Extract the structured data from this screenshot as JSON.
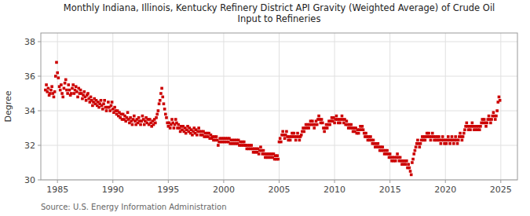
{
  "chart_data": {
    "type": "scatter",
    "title": "Monthly Indiana, Illinois, Kentucky Refinery District API Gravity (Weighted Average) of Crude Oil\nInput to Refineries",
    "ylabel": "Degree",
    "source": "Source: U.S. Energy Information Administration",
    "color": "#cc0000",
    "marker": "square",
    "grid": true,
    "xlim": [
      1983.5,
      2026.5
    ],
    "ylim": [
      30,
      38.5
    ],
    "xticks": [
      1985,
      1990,
      1995,
      2000,
      2005,
      2010,
      2015,
      2020,
      2025
    ],
    "yticks": [
      30,
      32,
      34,
      36,
      38
    ],
    "x": [
      1983.917,
      1984.0,
      1984.083,
      1984.167,
      1984.25,
      1984.333,
      1984.417,
      1984.5,
      1984.583,
      1984.667,
      1984.75,
      1984.833,
      1984.917,
      1985.0,
      1985.083,
      1985.167,
      1985.25,
      1985.333,
      1985.417,
      1985.5,
      1985.583,
      1985.667,
      1985.75,
      1985.833,
      1985.917,
      1986.0,
      1986.083,
      1986.167,
      1986.25,
      1986.333,
      1986.417,
      1986.5,
      1986.583,
      1986.667,
      1986.75,
      1986.833,
      1986.917,
      1987.0,
      1987.083,
      1987.167,
      1987.25,
      1987.333,
      1987.417,
      1987.5,
      1987.583,
      1987.667,
      1987.75,
      1987.833,
      1987.917,
      1988.0,
      1988.083,
      1988.167,
      1988.25,
      1988.333,
      1988.417,
      1988.5,
      1988.583,
      1988.667,
      1988.75,
      1988.833,
      1988.917,
      1989.0,
      1989.083,
      1989.167,
      1989.25,
      1989.333,
      1989.417,
      1989.5,
      1989.583,
      1989.667,
      1989.75,
      1989.833,
      1989.917,
      1990.0,
      1990.083,
      1990.167,
      1990.25,
      1990.333,
      1990.417,
      1990.5,
      1990.583,
      1990.667,
      1990.75,
      1990.833,
      1990.917,
      1991.0,
      1991.083,
      1991.167,
      1991.25,
      1991.333,
      1991.417,
      1991.5,
      1991.583,
      1991.667,
      1991.75,
      1991.833,
      1991.917,
      1992.0,
      1992.083,
      1992.167,
      1992.25,
      1992.333,
      1992.417,
      1992.5,
      1992.583,
      1992.667,
      1992.75,
      1992.833,
      1992.917,
      1993.0,
      1993.083,
      1993.167,
      1993.25,
      1993.333,
      1993.417,
      1993.5,
      1993.583,
      1993.667,
      1993.75,
      1993.833,
      1993.917,
      1994.0,
      1994.083,
      1994.167,
      1994.25,
      1994.333,
      1994.417,
      1994.5,
      1994.583,
      1994.667,
      1994.75,
      1994.833,
      1994.917,
      1995.0,
      1995.083,
      1995.167,
      1995.25,
      1995.333,
      1995.417,
      1995.5,
      1995.583,
      1995.667,
      1995.75,
      1995.833,
      1995.917,
      1996.0,
      1996.083,
      1996.167,
      1996.25,
      1996.333,
      1996.417,
      1996.5,
      1996.583,
      1996.667,
      1996.75,
      1996.833,
      1996.917,
      1997.0,
      1997.083,
      1997.167,
      1997.25,
      1997.333,
      1997.417,
      1997.5,
      1997.583,
      1997.667,
      1997.75,
      1997.833,
      1997.917,
      1998.0,
      1998.083,
      1998.167,
      1998.25,
      1998.333,
      1998.417,
      1998.5,
      1998.583,
      1998.667,
      1998.75,
      1998.833,
      1998.917,
      1999.0,
      1999.083,
      1999.167,
      1999.25,
      1999.333,
      1999.417,
      1999.5,
      1999.583,
      1999.667,
      1999.75,
      1999.833,
      1999.917,
      2000.0,
      2000.083,
      2000.167,
      2000.25,
      2000.333,
      2000.417,
      2000.5,
      2000.583,
      2000.667,
      2000.75,
      2000.833,
      2000.917,
      2001.0,
      2001.083,
      2001.167,
      2001.25,
      2001.333,
      2001.417,
      2001.5,
      2001.583,
      2001.667,
      2001.75,
      2001.833,
      2001.917,
      2002.0,
      2002.083,
      2002.167,
      2002.25,
      2002.333,
      2002.417,
      2002.5,
      2002.583,
      2002.667,
      2002.75,
      2002.833,
      2002.917,
      2003.0,
      2003.083,
      2003.167,
      2003.25,
      2003.333,
      2003.417,
      2003.5,
      2003.583,
      2003.667,
      2003.75,
      2003.833,
      2003.917,
      2004.0,
      2004.083,
      2004.167,
      2004.25,
      2004.333,
      2004.417,
      2004.5,
      2004.583,
      2004.667,
      2004.75,
      2004.833,
      2004.917,
      2005.0,
      2005.083,
      2005.167,
      2005.25,
      2005.333,
      2005.417,
      2005.5,
      2005.583,
      2005.667,
      2005.75,
      2005.833,
      2005.917,
      2006.0,
      2006.083,
      2006.167,
      2006.25,
      2006.333,
      2006.417,
      2006.5,
      2006.583,
      2006.667,
      2006.75,
      2006.833,
      2006.917,
      2007.0,
      2007.083,
      2007.167,
      2007.25,
      2007.333,
      2007.417,
      2007.5,
      2007.583,
      2007.667,
      2007.75,
      2007.833,
      2007.917,
      2008.0,
      2008.083,
      2008.167,
      2008.25,
      2008.333,
      2008.417,
      2008.5,
      2008.583,
      2008.667,
      2008.75,
      2008.833,
      2008.917,
      2009.0,
      2009.083,
      2009.167,
      2009.25,
      2009.333,
      2009.417,
      2009.5,
      2009.583,
      2009.667,
      2009.75,
      2009.833,
      2009.917,
      2010.0,
      2010.083,
      2010.167,
      2010.25,
      2010.333,
      2010.417,
      2010.5,
      2010.583,
      2010.667,
      2010.75,
      2010.833,
      2010.917,
      2011.0,
      2011.083,
      2011.167,
      2011.25,
      2011.333,
      2011.417,
      2011.5,
      2011.583,
      2011.667,
      2011.75,
      2011.833,
      2011.917,
      2012.0,
      2012.083,
      2012.167,
      2012.25,
      2012.333,
      2012.417,
      2012.5,
      2012.583,
      2012.667,
      2012.75,
      2012.833,
      2012.917,
      2013.0,
      2013.083,
      2013.167,
      2013.25,
      2013.333,
      2013.417,
      2013.5,
      2013.583,
      2013.667,
      2013.75,
      2013.833,
      2013.917,
      2014.0,
      2014.083,
      2014.167,
      2014.25,
      2014.333,
      2014.417,
      2014.5,
      2014.583,
      2014.667,
      2014.75,
      2014.833,
      2014.917,
      2015.0,
      2015.083,
      2015.167,
      2015.25,
      2015.333,
      2015.417,
      2015.5,
      2015.583,
      2015.667,
      2015.75,
      2015.833,
      2015.917,
      2016.0,
      2016.083,
      2016.167,
      2016.25,
      2016.333,
      2016.417,
      2016.5,
      2016.583,
      2016.667,
      2016.75,
      2016.833,
      2016.917,
      2017.0,
      2017.083,
      2017.167,
      2017.25,
      2017.333,
      2017.417,
      2017.5,
      2017.583,
      2017.667,
      2017.75,
      2017.833,
      2017.917,
      2018.0,
      2018.083,
      2018.167,
      2018.25,
      2018.333,
      2018.417,
      2018.5,
      2018.583,
      2018.667,
      2018.75,
      2018.833,
      2018.917,
      2019.0,
      2019.083,
      2019.167,
      2019.25,
      2019.333,
      2019.417,
      2019.5,
      2019.583,
      2019.667,
      2019.75,
      2019.833,
      2019.917,
      2020.0,
      2020.083,
      2020.167,
      2020.25,
      2020.333,
      2020.417,
      2020.5,
      2020.583,
      2020.667,
      2020.75,
      2020.833,
      2020.917,
      2021.0,
      2021.083,
      2021.167,
      2021.25,
      2021.333,
      2021.417,
      2021.5,
      2021.583,
      2021.667,
      2021.75,
      2021.833,
      2021.917,
      2022.0,
      2022.083,
      2022.167,
      2022.25,
      2022.333,
      2022.417,
      2022.5,
      2022.583,
      2022.667,
      2022.75,
      2022.833,
      2022.917,
      2023.0,
      2023.083,
      2023.167,
      2023.25,
      2023.333,
      2023.417,
      2023.5,
      2023.583,
      2023.667,
      2023.75,
      2023.833,
      2023.917,
      2024.0,
      2024.083,
      2024.167,
      2024.25,
      2024.333,
      2024.417,
      2024.5,
      2024.583,
      2024.667,
      2024.75,
      2024.833,
      2024.917
    ],
    "values": [
      35.2,
      35.5,
      35.1,
      35.3,
      34.9,
      35.0,
      35.2,
      35.4,
      35.0,
      34.8,
      35.1,
      36.0,
      36.8,
      36.2,
      35.9,
      35.4,
      35.2,
      35.5,
      35.0,
      34.8,
      35.3,
      35.6,
      35.8,
      35.2,
      35.0,
      35.5,
      35.2,
      34.9,
      35.0,
      35.3,
      35.5,
      35.0,
      35.2,
      35.4,
      35.1,
      34.8,
      35.3,
      35.0,
      35.2,
      35.0,
      34.7,
      34.9,
      35.1,
      34.8,
      34.6,
      34.9,
      35.0,
      34.7,
      34.5,
      34.8,
      34.6,
      34.3,
      34.5,
      34.7,
      34.4,
      34.6,
      34.3,
      34.5,
      34.2,
      34.4,
      34.6,
      34.3,
      34.1,
      34.4,
      34.6,
      34.2,
      34.0,
      34.2,
      34.5,
      34.2,
      34.0,
      34.3,
      34.5,
      34.1,
      33.9,
      34.2,
      34.0,
      33.8,
      34.0,
      33.7,
      33.9,
      33.6,
      33.8,
      33.5,
      33.8,
      33.5,
      33.7,
      33.4,
      33.6,
      33.9,
      33.5,
      33.3,
      33.6,
      33.4,
      33.2,
      33.5,
      33.7,
      33.4,
      33.2,
      33.5,
      33.3,
      33.6,
      33.4,
      33.2,
      33.4,
      33.7,
      33.5,
      33.2,
      33.4,
      33.6,
      33.3,
      33.5,
      33.2,
      33.5,
      33.3,
      33.1,
      33.4,
      33.2,
      33.5,
      33.3,
      33.6,
      33.8,
      34.0,
      34.4,
      34.6,
      35.0,
      35.3,
      34.8,
      34.4,
      34.1,
      33.8,
      33.6,
      33.3,
      33.1,
      33.3,
      33.0,
      33.2,
      33.5,
      33.3,
      33.0,
      33.2,
      33.5,
      33.3,
      33.0,
      33.2,
      33.0,
      32.8,
      33.1,
      32.9,
      33.1,
      32.8,
      33.0,
      32.7,
      32.9,
      33.1,
      32.8,
      33.0,
      32.7,
      32.9,
      32.6,
      32.8,
      33.0,
      32.7,
      32.9,
      32.6,
      32.8,
      33.0,
      32.8,
      32.6,
      32.8,
      32.6,
      32.8,
      32.5,
      32.7,
      32.5,
      32.7,
      32.5,
      32.7,
      32.4,
      32.6,
      32.4,
      32.5,
      32.3,
      32.5,
      32.3,
      32.5,
      32.3,
      32.0,
      32.2,
      32.4,
      32.2,
      32.4,
      32.2,
      32.4,
      32.2,
      32.4,
      32.2,
      32.4,
      32.2,
      32.4,
      32.1,
      32.3,
      32.1,
      32.3,
      32.1,
      32.3,
      32.1,
      32.3,
      32.1,
      32.3,
      32.0,
      32.2,
      32.0,
      32.2,
      32.0,
      32.2,
      32.0,
      32.0,
      31.8,
      32.0,
      31.8,
      32.0,
      31.8,
      32.0,
      31.8,
      31.6,
      31.8,
      31.6,
      31.8,
      31.6,
      31.8,
      31.5,
      31.7,
      31.9,
      31.7,
      31.5,
      31.7,
      31.5,
      31.3,
      31.5,
      31.3,
      31.5,
      31.3,
      31.5,
      31.3,
      31.5,
      31.3,
      31.5,
      31.2,
      31.4,
      31.2,
      31.4,
      31.2,
      32.2,
      32.4,
      32.2,
      32.6,
      32.8,
      32.6,
      32.4,
      32.6,
      32.8,
      32.5,
      32.3,
      32.5,
      32.3,
      32.5,
      32.7,
      32.5,
      32.7,
      32.5,
      32.3,
      32.5,
      32.7,
      32.5,
      32.3,
      32.5,
      32.6,
      32.8,
      33.0,
      32.8,
      33.0,
      33.2,
      33.0,
      33.2,
      33.0,
      33.2,
      33.4,
      33.2,
      33.4,
      33.2,
      33.0,
      33.2,
      33.4,
      33.2,
      33.5,
      33.7,
      33.5,
      33.3,
      33.5,
      33.3,
      33.0,
      32.8,
      33.0,
      33.2,
      33.0,
      33.2,
      33.4,
      33.2,
      33.4,
      33.6,
      33.4,
      33.6,
      33.3,
      33.5,
      33.7,
      33.5,
      33.3,
      33.5,
      33.3,
      33.5,
      33.7,
      33.5,
      33.3,
      33.5,
      33.2,
      33.4,
      33.2,
      33.0,
      33.2,
      33.0,
      33.2,
      33.0,
      32.8,
      33.0,
      32.8,
      33.0,
      32.7,
      32.9,
      32.7,
      32.9,
      33.1,
      32.9,
      33.1,
      32.9,
      32.7,
      32.5,
      32.7,
      32.5,
      32.3,
      32.5,
      32.3,
      32.5,
      32.3,
      32.1,
      32.3,
      32.1,
      31.9,
      32.1,
      31.9,
      32.1,
      31.9,
      31.7,
      31.9,
      31.7,
      31.9,
      31.7,
      31.5,
      31.7,
      31.5,
      31.7,
      31.5,
      31.3,
      31.5,
      31.3,
      31.1,
      31.3,
      31.1,
      31.3,
      31.1,
      31.3,
      31.5,
      31.3,
      31.1,
      31.3,
      31.1,
      30.9,
      31.1,
      30.9,
      31.1,
      30.9,
      31.1,
      30.7,
      30.9,
      30.7,
      30.5,
      30.3,
      31.0,
      31.2,
      31.5,
      31.7,
      31.9,
      32.1,
      32.3,
      32.1,
      31.9,
      32.1,
      32.3,
      32.5,
      32.3,
      32.5,
      32.3,
      32.5,
      32.7,
      32.5,
      32.7,
      32.5,
      32.3,
      32.5,
      32.7,
      32.5,
      32.3,
      32.5,
      32.3,
      32.5,
      32.3,
      32.5,
      32.3,
      32.1,
      32.3,
      32.5,
      32.3,
      32.1,
      32.3,
      32.1,
      32.3,
      32.5,
      32.3,
      32.1,
      32.3,
      32.5,
      32.3,
      32.1,
      32.3,
      32.5,
      32.3,
      32.1,
      32.3,
      32.5,
      32.7,
      32.5,
      32.3,
      32.5,
      32.7,
      32.9,
      33.1,
      33.3,
      33.1,
      32.9,
      33.1,
      32.9,
      33.1,
      33.3,
      33.1,
      32.9,
      33.1,
      32.9,
      33.1,
      32.9,
      33.1,
      32.9,
      33.1,
      33.3,
      33.5,
      33.3,
      33.5,
      33.3,
      33.1,
      33.3,
      33.5,
      33.7,
      33.5,
      33.3,
      33.5,
      33.7,
      33.9,
      33.7,
      33.5,
      33.7,
      34.0,
      34.5,
      34.8,
      34.6
    ]
  }
}
